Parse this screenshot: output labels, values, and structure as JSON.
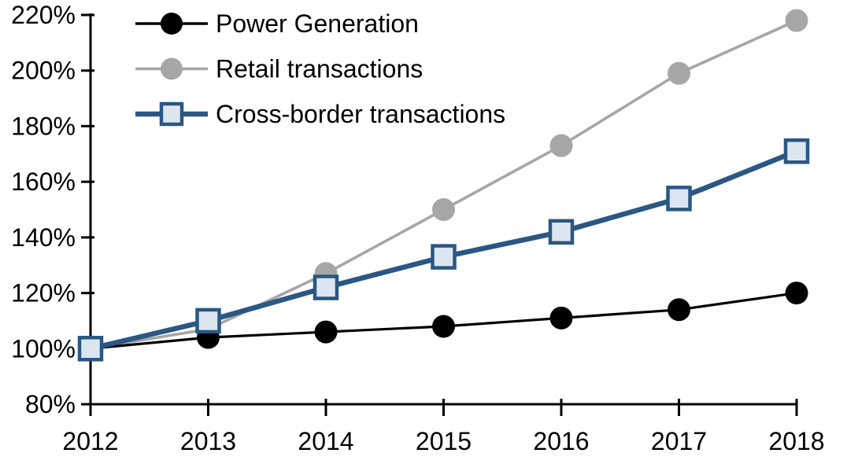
{
  "chart_data": {
    "type": "line",
    "title": "",
    "xlabel": "",
    "ylabel": "",
    "x": [
      2012,
      2013,
      2014,
      2015,
      2016,
      2017,
      2018
    ],
    "x_tick_labels": [
      "2012",
      "2013",
      "2014",
      "2015",
      "2016",
      "2017",
      "2018"
    ],
    "y_ticks": [
      80,
      100,
      120,
      140,
      160,
      180,
      200,
      220
    ],
    "y_tick_labels": [
      "80%",
      "100%",
      "120%",
      "140%",
      "160%",
      "180%",
      "200%",
      "220%"
    ],
    "ylim": [
      80,
      220
    ],
    "grid": false,
    "legend_position": "top-left",
    "axis_color": "#000000",
    "series": [
      {
        "name": "Power Generation",
        "marker": "circle",
        "line_color": "#000000",
        "marker_fill": "#000000",
        "marker_stroke": "none",
        "line_width": 3.2,
        "values": [
          100,
          104,
          106,
          108,
          111,
          114,
          120
        ]
      },
      {
        "name": "Retail transactions",
        "marker": "circle",
        "line_color": "#a6a6a6",
        "marker_fill": "#a6a6a6",
        "marker_stroke": "none",
        "line_width": 3.6,
        "values": [
          100,
          107,
          127,
          150,
          173,
          199,
          218
        ]
      },
      {
        "name": "Cross-border transactions",
        "marker": "square",
        "line_color": "#2a5783",
        "marker_fill": "#dce6f1",
        "marker_stroke": "#2a5783",
        "line_width": 6.5,
        "values": [
          100,
          110,
          122,
          133,
          142,
          154,
          171
        ]
      }
    ],
    "draw_order": [
      1,
      0,
      2
    ]
  }
}
